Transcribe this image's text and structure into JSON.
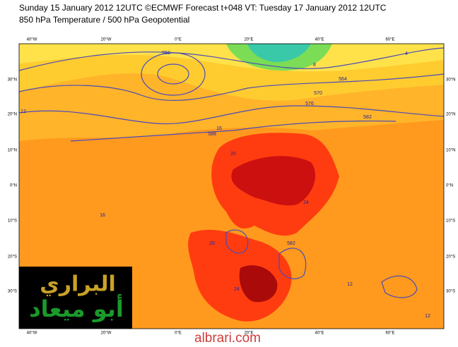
{
  "header": {
    "title": "Sunday 15 January 2012 12UTC ©ECMWF Forecast t+048 VT: Tuesday 17 January 2012 12UTC",
    "subtitle": "850 hPa Temperature / 500 hPa Geopotential"
  },
  "map": {
    "lon_labels": [
      "40°W",
      "20°W",
      "0°E",
      "20°E",
      "40°E",
      "60°E"
    ],
    "lat_labels": [
      "30°N",
      "20°N",
      "10°N",
      "0°N",
      "10°S",
      "20°S",
      "30°S"
    ],
    "contour_labels": [
      "552",
      "564",
      "570",
      "576",
      "582",
      "588",
      "582",
      "16",
      "20",
      "24",
      "24",
      "20",
      "16",
      "12",
      "12",
      "12",
      "8",
      "4"
    ]
  },
  "logo": {
    "line1": "البراري",
    "line2": "أبو ميعاد"
  },
  "watermark": "albrari.com"
}
